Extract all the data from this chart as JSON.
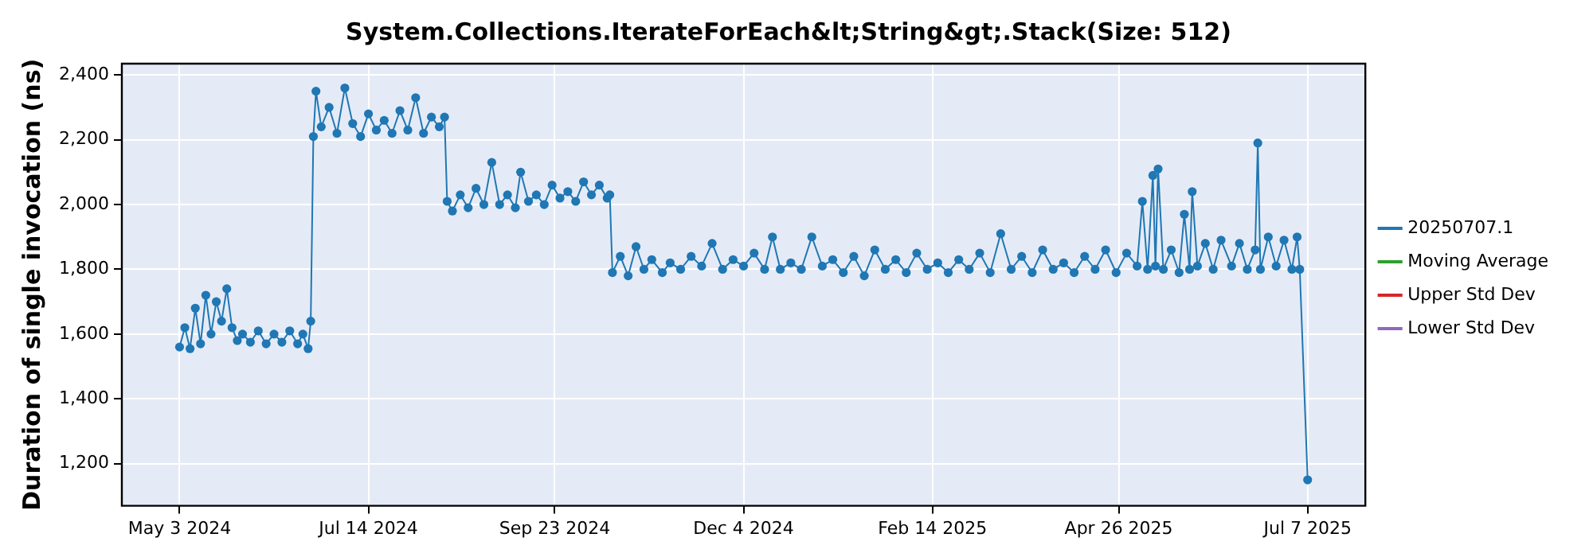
{
  "chart_data": {
    "type": "line",
    "title": "System.Collections.IterateForEach&lt;String&gt;.Stack(Size: 512)",
    "ylabel": "Duration of single invocation (ns)",
    "x": [
      "2024-05-03",
      "2024-05-05",
      "2024-05-07",
      "2024-05-09",
      "2024-05-11",
      "2024-05-13",
      "2024-05-15",
      "2024-05-17",
      "2024-05-19",
      "2024-05-21",
      "2024-05-23",
      "2024-05-25",
      "2024-05-27",
      "2024-05-30",
      "2024-06-02",
      "2024-06-05",
      "2024-06-08",
      "2024-06-11",
      "2024-06-14",
      "2024-06-17",
      "2024-06-19",
      "2024-06-21",
      "2024-06-22",
      "2024-06-23",
      "2024-06-24",
      "2024-06-26",
      "2024-06-29",
      "2024-07-02",
      "2024-07-05",
      "2024-07-08",
      "2024-07-11",
      "2024-07-14",
      "2024-07-17",
      "2024-07-20",
      "2024-07-23",
      "2024-07-26",
      "2024-07-29",
      "2024-08-01",
      "2024-08-04",
      "2024-08-07",
      "2024-08-10",
      "2024-08-12",
      "2024-08-13",
      "2024-08-15",
      "2024-08-18",
      "2024-08-21",
      "2024-08-24",
      "2024-08-27",
      "2024-08-30",
      "2024-09-02",
      "2024-09-05",
      "2024-09-08",
      "2024-09-10",
      "2024-09-13",
      "2024-09-16",
      "2024-09-19",
      "2024-09-22",
      "2024-09-25",
      "2024-09-28",
      "2024-10-01",
      "2024-10-04",
      "2024-10-07",
      "2024-10-10",
      "2024-10-13",
      "2024-10-14",
      "2024-10-15",
      "2024-10-18",
      "2024-10-21",
      "2024-10-24",
      "2024-10-27",
      "2024-10-30",
      "2024-11-03",
      "2024-11-06",
      "2024-11-10",
      "2024-11-14",
      "2024-11-18",
      "2024-11-22",
      "2024-11-26",
      "2024-11-30",
      "2024-12-04",
      "2024-12-08",
      "2024-12-12",
      "2024-12-15",
      "2024-12-18",
      "2024-12-22",
      "2024-12-26",
      "2024-12-30",
      "2025-01-03",
      "2025-01-07",
      "2025-01-11",
      "2025-01-15",
      "2025-01-19",
      "2025-01-23",
      "2025-01-27",
      "2025-01-31",
      "2025-02-04",
      "2025-02-08",
      "2025-02-12",
      "2025-02-16",
      "2025-02-20",
      "2025-02-24",
      "2025-02-28",
      "2025-03-04",
      "2025-03-08",
      "2025-03-12",
      "2025-03-16",
      "2025-03-20",
      "2025-03-24",
      "2025-03-28",
      "2025-04-01",
      "2025-04-05",
      "2025-04-09",
      "2025-04-13",
      "2025-04-17",
      "2025-04-21",
      "2025-04-25",
      "2025-04-29",
      "2025-05-03",
      "2025-05-05",
      "2025-05-07",
      "2025-05-09",
      "2025-05-10",
      "2025-05-11",
      "2025-05-13",
      "2025-05-16",
      "2025-05-19",
      "2025-05-21",
      "2025-05-23",
      "2025-05-24",
      "2025-05-26",
      "2025-05-29",
      "2025-06-01",
      "2025-06-04",
      "2025-06-08",
      "2025-06-11",
      "2025-06-14",
      "2025-06-17",
      "2025-06-18",
      "2025-06-19",
      "2025-06-22",
      "2025-06-25",
      "2025-06-28",
      "2025-07-01",
      "2025-07-03",
      "2025-07-04",
      "2025-07-07"
    ],
    "series": [
      {
        "name": "20250707.1",
        "color": "#1f77b4",
        "values": [
          1560,
          1620,
          1555,
          1680,
          1570,
          1720,
          1600,
          1700,
          1640,
          1740,
          1620,
          1580,
          1600,
          1575,
          1610,
          1570,
          1600,
          1575,
          1610,
          1570,
          1600,
          1555,
          1640,
          2210,
          2350,
          2240,
          2300,
          2220,
          2360,
          2250,
          2210,
          2280,
          2230,
          2260,
          2220,
          2290,
          2230,
          2330,
          2220,
          2270,
          2240,
          2270,
          2010,
          1980,
          2030,
          1990,
          2050,
          2000,
          2130,
          2000,
          2030,
          1990,
          2100,
          2010,
          2030,
          2000,
          2060,
          2020,
          2040,
          2010,
          2070,
          2030,
          2060,
          2020,
          2030,
          1790,
          1840,
          1780,
          1870,
          1800,
          1830,
          1790,
          1820,
          1800,
          1840,
          1810,
          1880,
          1800,
          1830,
          1810,
          1850,
          1800,
          1900,
          1800,
          1820,
          1800,
          1900,
          1810,
          1830,
          1790,
          1840,
          1780,
          1860,
          1800,
          1830,
          1790,
          1850,
          1800,
          1820,
          1790,
          1830,
          1800,
          1850,
          1790,
          1910,
          1800,
          1840,
          1790,
          1860,
          1800,
          1820,
          1790,
          1840,
          1800,
          1860,
          1790,
          1850,
          1810,
          2010,
          1800,
          2090,
          1810,
          2110,
          1800,
          1860,
          1790,
          1970,
          1800,
          2040,
          1810,
          1880,
          1800,
          1890,
          1810,
          1880,
          1800,
          1860,
          2190,
          1800,
          1900,
          1810,
          1890,
          1800,
          1900,
          1800,
          1150
        ]
      },
      {
        "name": "Moving Average",
        "color": "#2ca02c",
        "values": [
          null,
          null,
          null,
          null,
          null,
          null,
          null,
          null,
          null,
          null,
          null,
          null,
          null,
          null,
          null,
          null,
          null,
          null,
          null,
          null,
          null,
          null,
          null,
          null,
          null,
          null,
          null,
          null,
          null,
          null,
          null,
          null,
          null,
          null,
          null,
          null,
          null,
          null,
          null,
          null,
          null,
          null,
          null,
          null,
          null,
          null,
          null,
          null,
          null,
          null,
          null,
          null,
          null,
          null,
          null,
          null,
          null,
          null,
          null,
          null,
          null,
          null,
          null,
          null,
          null,
          null,
          null,
          null,
          null,
          null,
          null,
          null,
          null,
          null,
          null,
          null,
          null,
          null,
          null,
          null,
          null,
          null,
          null,
          null,
          null,
          null,
          null,
          null,
          null,
          null,
          null,
          null,
          null,
          null,
          null,
          null,
          null,
          null,
          null,
          null,
          null,
          null,
          null,
          null,
          null,
          null,
          null,
          null,
          null,
          null,
          null,
          null,
          null,
          null,
          null,
          null,
          null,
          null,
          null,
          null,
          null,
          null,
          null,
          null,
          null,
          null,
          null,
          null,
          null,
          null,
          null,
          null,
          null,
          null,
          null,
          null,
          null,
          null,
          null,
          null,
          null,
          null,
          null,
          null,
          null,
          null
        ]
      },
      {
        "name": "Upper Std Dev",
        "color": "#d62728",
        "values": [
          null,
          null,
          null,
          null,
          null,
          null,
          null,
          null,
          null,
          null,
          null,
          null,
          null,
          null,
          null,
          null,
          null,
          null,
          null,
          null,
          null,
          null,
          null,
          null,
          null,
          null,
          null,
          null,
          null,
          null,
          null,
          null,
          null,
          null,
          null,
          null,
          null,
          null,
          null,
          null,
          null,
          null,
          null,
          null,
          null,
          null,
          null,
          null,
          null,
          null,
          null,
          null,
          null,
          null,
          null,
          null,
          null,
          null,
          null,
          null,
          null,
          null,
          null,
          null,
          null,
          null,
          null,
          null,
          null,
          null,
          null,
          null,
          null,
          null,
          null,
          null,
          null,
          null,
          null,
          null,
          null,
          null,
          null,
          null,
          null,
          null,
          null,
          null,
          null,
          null,
          null,
          null,
          null,
          null,
          null,
          null,
          null,
          null,
          null,
          null,
          null,
          null,
          null,
          null,
          null,
          null,
          null,
          null,
          null,
          null,
          null,
          null,
          null,
          null,
          null,
          null,
          null,
          null,
          null,
          null,
          null,
          null,
          null,
          null,
          null,
          null,
          null,
          null,
          null,
          null,
          null,
          null,
          null,
          null,
          null,
          null,
          null,
          null,
          null,
          null,
          null,
          null,
          null,
          null,
          null,
          null
        ]
      },
      {
        "name": "Lower Std Dev",
        "color": "#9467bd",
        "values": [
          null,
          null,
          null,
          null,
          null,
          null,
          null,
          null,
          null,
          null,
          null,
          null,
          null,
          null,
          null,
          null,
          null,
          null,
          null,
          null,
          null,
          null,
          null,
          null,
          null,
          null,
          null,
          null,
          null,
          null,
          null,
          null,
          null,
          null,
          null,
          null,
          null,
          null,
          null,
          null,
          null,
          null,
          null,
          null,
          null,
          null,
          null,
          null,
          null,
          null,
          null,
          null,
          null,
          null,
          null,
          null,
          null,
          null,
          null,
          null,
          null,
          null,
          null,
          null,
          null,
          null,
          null,
          null,
          null,
          null,
          null,
          null,
          null,
          null,
          null,
          null,
          null,
          null,
          null,
          null,
          null,
          null,
          null,
          null,
          null,
          null,
          null,
          null,
          null,
          null,
          null,
          null,
          null,
          null,
          null,
          null,
          null,
          null,
          null,
          null,
          null,
          null,
          null,
          null,
          null,
          null,
          null,
          null,
          null,
          null,
          null,
          null,
          null,
          null,
          null,
          null,
          null,
          null,
          null,
          null,
          null,
          null,
          null,
          null,
          null,
          null,
          null,
          null,
          null,
          null,
          null,
          null,
          null,
          null,
          null,
          null,
          null,
          null,
          null,
          null,
          null,
          null,
          null,
          null,
          null,
          null
        ]
      }
    ],
    "xlim": [
      "2024-04-11",
      "2025-07-29"
    ],
    "xticks": [
      {
        "value": "2024-05-03",
        "label": "May 3 2024"
      },
      {
        "value": "2024-07-14",
        "label": "Jul 14 2024"
      },
      {
        "value": "2024-09-23",
        "label": "Sep 23 2024"
      },
      {
        "value": "2024-12-04",
        "label": "Dec 4 2024"
      },
      {
        "value": "2025-02-14",
        "label": "Feb 14 2025"
      },
      {
        "value": "2025-04-26",
        "label": "Apr 26 2025"
      },
      {
        "value": "2025-07-07",
        "label": "Jul 7 2025"
      }
    ],
    "ylim": [
      1070,
      2435
    ],
    "yticks": [
      {
        "value": 1200,
        "label": "1,200"
      },
      {
        "value": 1400,
        "label": "1,400"
      },
      {
        "value": 1600,
        "label": "1,600"
      },
      {
        "value": 1800,
        "label": "1,800"
      },
      {
        "value": 2000,
        "label": "2,000"
      },
      {
        "value": 2200,
        "label": "2,200"
      },
      {
        "value": 2400,
        "label": "2,400"
      }
    ],
    "grid": true,
    "legend": "right",
    "marker": "circle",
    "line_style": "solid"
  }
}
